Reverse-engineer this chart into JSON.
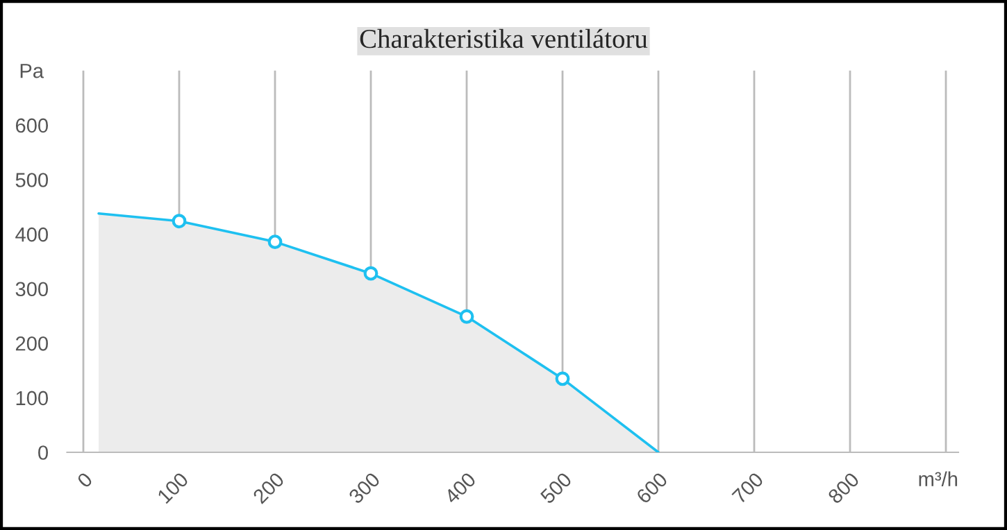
{
  "chart_data": {
    "type": "area",
    "title": "Charakteristika ventilátoru",
    "xlabel": "m³/h",
    "ylabel": "Pa",
    "x": [
      16,
      100,
      200,
      300,
      400,
      500,
      600
    ],
    "series": [
      {
        "color": "#1ec0f0",
        "values": [
          438,
          424,
          386,
          328,
          249,
          135,
          0
        ]
      }
    ],
    "xlim": [
      -17,
      913
    ],
    "ylim": [
      0,
      700
    ],
    "xticks": [
      0,
      100,
      200,
      300,
      400,
      500,
      600,
      700,
      800,
      {
        "value": 900,
        "label": null
      }
    ],
    "yticks": [
      0,
      100,
      200,
      300,
      400,
      500,
      600
    ],
    "grid": "x",
    "marker": "circle",
    "line_style": "solid",
    "legend": false
  }
}
